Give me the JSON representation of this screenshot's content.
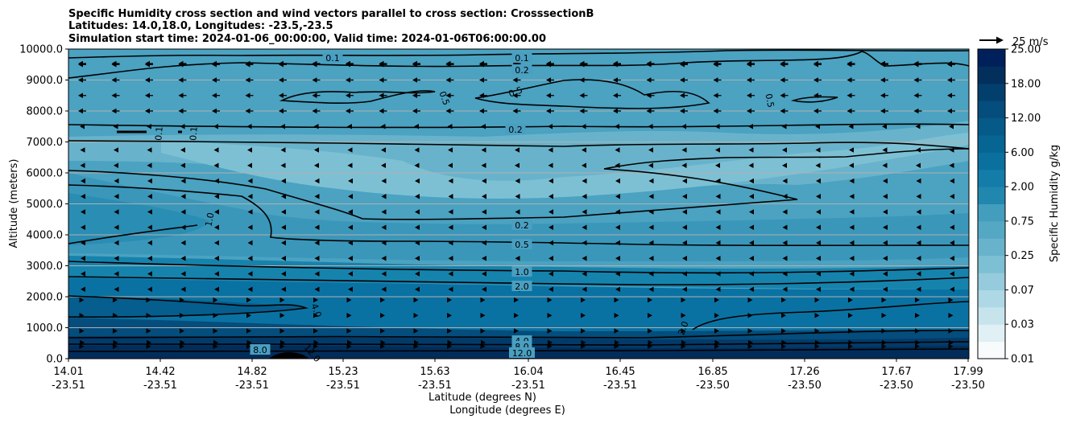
{
  "chart_data": {
    "type": "heatmap",
    "title_lines": [
      "Specific Humidity cross section and wind vectors parallel to cross section: CrosssectionB",
      "Latitudes: 14.0,18.0, Longitudes: -23.5,-23.5",
      "Simulation start time: 2024-01-06_00:00:00, Valid time: 2024-01-06T06:00:00.00"
    ],
    "ylabel": "Altitude (meters)",
    "xlabel_lines": [
      "Latitude (degrees N)",
      "Longitude (degrees E)"
    ],
    "ylim": [
      0,
      10000
    ],
    "yticks": [
      "0.0",
      "1000.0",
      "2000.0",
      "3000.0",
      "4000.0",
      "5000.0",
      "6000.0",
      "7000.0",
      "8000.0",
      "9000.0",
      "10000.0"
    ],
    "xticks": [
      {
        "lat": "14.01",
        "lon": "-23.51"
      },
      {
        "lat": "14.42",
        "lon": "-23.51"
      },
      {
        "lat": "14.82",
        "lon": "-23.51"
      },
      {
        "lat": "15.23",
        "lon": "-23.51"
      },
      {
        "lat": "15.63",
        "lon": "-23.51"
      },
      {
        "lat": "16.04",
        "lon": "-23.51"
      },
      {
        "lat": "16.45",
        "lon": "-23.51"
      },
      {
        "lat": "16.85",
        "lon": "-23.50"
      },
      {
        "lat": "17.26",
        "lon": "-23.50"
      },
      {
        "lat": "17.67",
        "lon": "-23.50"
      },
      {
        "lat": "17.99",
        "lon": "-23.50"
      }
    ],
    "grid": "horizontal",
    "colorbar": {
      "label": "Specific Humidity g/kg",
      "ticks": [
        "0.01",
        "0.03",
        "0.07",
        "0.25",
        "0.75",
        "2.00",
        "6.00",
        "12.00",
        "18.00",
        "25.00"
      ],
      "n_levels": 18,
      "colors": [
        "#f7fbfc",
        "#e0f0f4",
        "#c7e4ed",
        "#aed8e5",
        "#95cbdc",
        "#7dbfd3",
        "#68b3cb",
        "#55a8c4",
        "#439dbd",
        "#3292b6",
        "#2287af",
        "#137ca8",
        "#0a709e",
        "#066593",
        "#055a88",
        "#044d7c",
        "#033f6d",
        "#022f5c",
        "#00205c"
      ]
    },
    "quiver_key": "25 m/s",
    "wind": {
      "upper_levels_m": [
        7500,
        8000,
        8500,
        9000,
        9500,
        10000
      ],
      "upper_direction": "westward",
      "lower_levels_m": [
        500,
        1000,
        1500,
        2000
      ],
      "lower_direction": "eastward",
      "mid_direction": "weak"
    },
    "contour_labels": [
      {
        "text": "0.1"
      },
      {
        "text": "0.1"
      },
      {
        "text": "0.2"
      },
      {
        "text": "0.5"
      },
      {
        "text": "0.5"
      },
      {
        "text": "0.5"
      },
      {
        "text": "0.2"
      },
      {
        "text": "0.1"
      },
      {
        "text": "0.1"
      },
      {
        "text": "1.0"
      },
      {
        "text": "0.2"
      },
      {
        "text": "0.5"
      },
      {
        "text": "1.0"
      },
      {
        "text": "2.0"
      },
      {
        "text": "4.0"
      },
      {
        "text": "2.0"
      },
      {
        "text": "4.0"
      },
      {
        "text": "8.0"
      },
      {
        "text": "8.0"
      },
      {
        "text": "12.0"
      },
      {
        "text": "12.0"
      }
    ]
  }
}
